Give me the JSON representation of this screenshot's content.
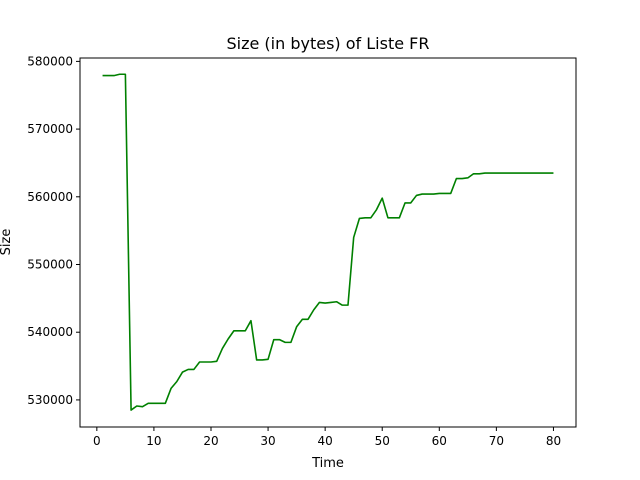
{
  "chart_data": {
    "type": "line",
    "title": "Size (in bytes) of Liste FR",
    "xlabel": "Time",
    "ylabel": "Size",
    "xlim": [
      -2.95,
      83.95
    ],
    "ylim": [
      526000,
      580500
    ],
    "xticks": [
      0,
      10,
      20,
      30,
      40,
      50,
      60,
      70,
      80
    ],
    "yticks": [
      530000,
      540000,
      550000,
      560000,
      570000,
      580000
    ],
    "grid": false,
    "series": [
      {
        "color": "#008000",
        "x": [
          1,
          2,
          3,
          4,
          5,
          6,
          7,
          8,
          9,
          10,
          11,
          12,
          13,
          14,
          15,
          16,
          17,
          18,
          19,
          20,
          21,
          22,
          23,
          24,
          25,
          26,
          27,
          28,
          29,
          30,
          31,
          32,
          33,
          34,
          35,
          36,
          37,
          38,
          39,
          40,
          41,
          42,
          43,
          44,
          45,
          46,
          47,
          48,
          49,
          50,
          51,
          52,
          53,
          54,
          55,
          56,
          57,
          58,
          59,
          60,
          61,
          62,
          63,
          64,
          65,
          66,
          67,
          68,
          69,
          70,
          71,
          72,
          73,
          74,
          75,
          76,
          77,
          78,
          79,
          80
        ],
        "y": [
          577900,
          577900,
          577900,
          578100,
          578100,
          528500,
          529100,
          529000,
          529500,
          529500,
          529500,
          529500,
          531700,
          532700,
          534100,
          534500,
          534500,
          535600,
          535600,
          535600,
          535700,
          537600,
          539000,
          540200,
          540200,
          540200,
          541700,
          535900,
          535900,
          536000,
          538900,
          538900,
          538500,
          538500,
          540800,
          541900,
          541900,
          543300,
          544400,
          544300,
          544400,
          544500,
          544000,
          544000,
          554000,
          556800,
          556900,
          556900,
          558100,
          559800,
          556900,
          556900,
          556900,
          559100,
          559100,
          560200,
          560400,
          560400,
          560400,
          560500,
          560500,
          560500,
          562700,
          562700,
          562800,
          563400,
          563400,
          563500,
          563500,
          563500,
          563500,
          563500,
          563500,
          563500,
          563500,
          563500,
          563500,
          563500,
          563500,
          563500
        ]
      }
    ]
  }
}
